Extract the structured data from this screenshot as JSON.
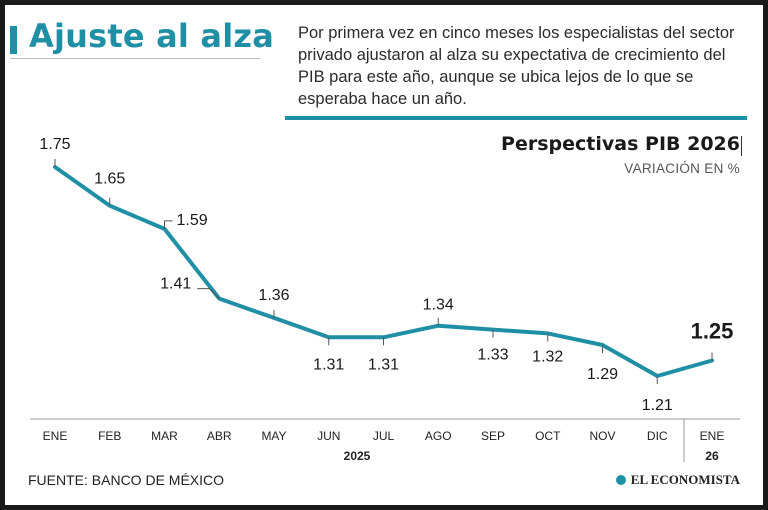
{
  "header": {
    "title": "Ajuste al alza",
    "description": "Por primera vez en cinco meses los especialistas del sector privado ajustaron al alza su expectativa de crecimiento del PIB para este año, aunque se ubica lejos de lo que se esperaba hace un año."
  },
  "colors": {
    "accent": "#1f8fa5",
    "text": "#222222"
  },
  "chart_data": {
    "type": "line",
    "title": "Perspectivas PIB 2026",
    "subtitle": "VARIACIÓN EN %",
    "categories": [
      "ENE",
      "FEB",
      "MAR",
      "ABR",
      "MAY",
      "JUN",
      "JUL",
      "AGO",
      "SEP",
      "OCT",
      "NOV",
      "DIC",
      "ENE"
    ],
    "value_labels": [
      "1.75",
      "1.65",
      "1.59",
      "1.41",
      "1.36",
      "1.31",
      "1.31",
      "1.34",
      "1.33",
      "1.32",
      "1.29",
      "1.21",
      "1.25"
    ],
    "values": [
      1.75,
      1.65,
      1.59,
      1.41,
      1.36,
      1.31,
      1.31,
      1.34,
      1.33,
      1.32,
      1.29,
      1.21,
      1.25
    ],
    "year_labels": [
      "2025",
      "26"
    ],
    "xlabel": "",
    "ylabel": "",
    "ylim": [
      1.2,
      1.75
    ],
    "series": [
      {
        "name": "Perspectivas PIB 2026",
        "values": [
          1.75,
          1.65,
          1.59,
          1.41,
          1.36,
          1.31,
          1.31,
          1.34,
          1.33,
          1.32,
          1.29,
          1.21,
          1.25
        ]
      }
    ]
  },
  "footer": {
    "source": "FUENTE: BANCO DE MÉXICO",
    "logo": "EL ECONOMISTA"
  }
}
